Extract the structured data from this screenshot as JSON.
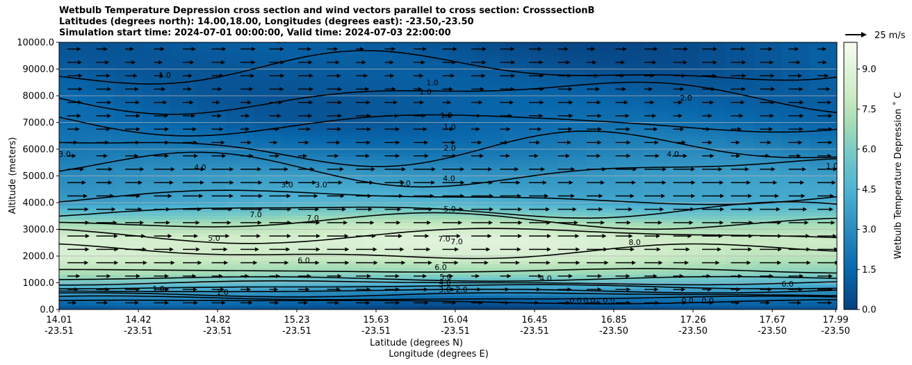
{
  "chart_data": {
    "type": "heatmap",
    "title_lines": [
      "Wetbulb Temperature Depression cross section and wind vectors parallel to cross section: CrosssectionB",
      "Latitudes (degrees north): 14.00,18.00, Longitudes (degrees east): -23.50,-23.50",
      "Simulation start time: 2024-07-01 00:00:00, Valid time: 2024-07-03 22:00:00"
    ],
    "ylabel": "Altitude (meters)",
    "xlabel_lines": [
      "Latitude (degrees N)",
      "Longitude (degrees E)"
    ],
    "ylim": [
      0,
      10000
    ],
    "y_ticks": [
      "0.0",
      "1000.0",
      "2000.0",
      "3000.0",
      "4000.0",
      "5000.0",
      "6000.0",
      "7000.0",
      "8000.0",
      "9000.0",
      "10000.0"
    ],
    "x_ticks": [
      {
        "lat": "14.01",
        "lon": "-23.51"
      },
      {
        "lat": "14.42",
        "lon": "-23.51"
      },
      {
        "lat": "14.82",
        "lon": "-23.51"
      },
      {
        "lat": "15.23",
        "lon": "-23.51"
      },
      {
        "lat": "15.63",
        "lon": "-23.51"
      },
      {
        "lat": "16.04",
        "lon": "-23.51"
      },
      {
        "lat": "16.45",
        "lon": "-23.51"
      },
      {
        "lat": "16.85",
        "lon": "-23.50"
      },
      {
        "lat": "17.26",
        "lon": "-23.50"
      },
      {
        "lat": "17.67",
        "lon": "-23.50"
      },
      {
        "lat": "17.99",
        "lon": "-23.50"
      }
    ],
    "colorbar": {
      "label": "Wetbulb Temperature Depression ˚ C",
      "range": [
        0,
        10
      ],
      "ticks": [
        "0.0",
        "1.5",
        "3.0",
        "4.5",
        "6.0",
        "7.5",
        "9.0"
      ],
      "colormap": "GnBu_r"
    },
    "quiver_key": {
      "label": "25 m/s"
    },
    "grid": "horizontal",
    "contour_labels": [
      "1.0",
      "1.0",
      "1.0",
      "1.0",
      "1.0",
      "1.0",
      "1.0",
      "2.0",
      "2.0",
      "3.0",
      "3.0",
      "3.0",
      "3.0",
      "4.0",
      "4.0",
      "4.0",
      "4.0",
      "5.0",
      "5.0",
      "5.0",
      "6.0",
      "6.0",
      "7.0",
      "7.0",
      "7.0",
      "7.0",
      "8.0",
      "0.0",
      "0.0",
      "0.0",
      "0.0",
      "0.0",
      "6.0",
      "1.0",
      "1.0",
      "2.0",
      "3.0",
      "4.0"
    ],
    "depression_profile": [
      {
        "alt": 0,
        "value": 0.4
      },
      {
        "alt": 300,
        "value": 1.5
      },
      {
        "alt": 800,
        "value": 4.0
      },
      {
        "alt": 1300,
        "value": 6.5
      },
      {
        "alt": 2000,
        "value": 8.2
      },
      {
        "alt": 2600,
        "value": 8.6
      },
      {
        "alt": 3200,
        "value": 7.2
      },
      {
        "alt": 4000,
        "value": 4.2
      },
      {
        "alt": 5000,
        "value": 3.4
      },
      {
        "alt": 6000,
        "value": 2.2
      },
      {
        "alt": 7000,
        "value": 1.4
      },
      {
        "alt": 8500,
        "value": 1.1
      },
      {
        "alt": 10000,
        "value": 0.8
      }
    ]
  }
}
